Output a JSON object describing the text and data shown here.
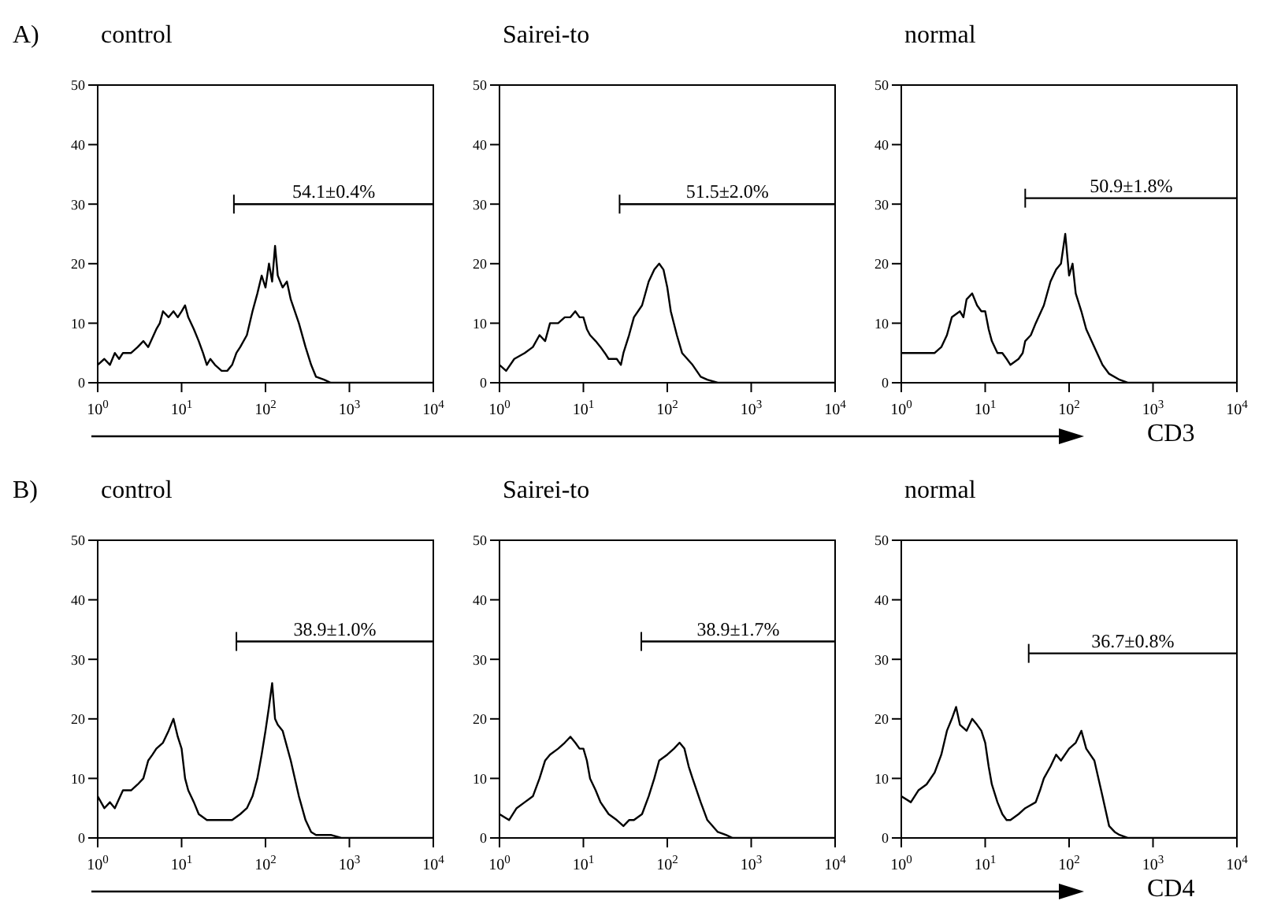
{
  "chart_data": [
    {
      "type": "line",
      "title": "control",
      "annotations": [
        "A)",
        {
          "text": "54.1±0.4%",
          "x": 650,
          "y": 30
        }
      ],
      "log": "x",
      "xlim": [
        1,
        10000
      ],
      "xticks": [
        {
          "value": 1,
          "label": "10$^{0}$"
        },
        {
          "value": 10,
          "label": "10$^{1}$"
        },
        {
          "value": 100,
          "label": "10$^{2}$"
        },
        {
          "value": 1000,
          "label": "10$^{3}$"
        },
        {
          "value": 10000,
          "label": "10$^{4}$"
        }
      ],
      "ylim": [
        0,
        50
      ],
      "yticks": [
        0,
        10,
        20,
        30,
        40,
        50
      ],
      "grid": false,
      "legend": false,
      "series": [
        {
          "color": "#000000",
          "x": [
            1,
            1.2,
            1.4,
            1.6,
            1.8,
            2,
            2.5,
            3,
            3.5,
            4,
            5,
            5.5,
            6,
            7,
            8,
            9,
            10,
            11,
            12,
            14,
            16,
            18,
            20,
            22,
            25,
            30,
            35,
            40,
            45,
            50,
            60,
            70,
            80,
            90,
            100,
            110,
            120,
            130,
            140,
            160,
            180,
            200,
            250,
            300,
            350,
            400,
            500,
            600,
            1000,
            10000
          ],
          "values": [
            3,
            4,
            3,
            5,
            4,
            5,
            5,
            6,
            7,
            6,
            9,
            10,
            12,
            11,
            12,
            11,
            12,
            13,
            11,
            9,
            7,
            5,
            3,
            4,
            3,
            2,
            2,
            3,
            5,
            6,
            8,
            12,
            15,
            18,
            16,
            20,
            17,
            23,
            18,
            16,
            17,
            14,
            10,
            6,
            3,
            1,
            0.5,
            0,
            0,
            0
          ]
        },
        {
          "color": "#000000",
          "x": [
            42,
            10000
          ],
          "values": [
            30,
            30
          ]
        }
      ]
    },
    {
      "type": "line",
      "title": "Sairei-to",
      "annotations": [
        {
          "text": "51.5±2.0%",
          "x": 520,
          "y": 30
        }
      ],
      "log": "x",
      "xlim": [
        1,
        10000
      ],
      "xticks": [
        {
          "value": 1,
          "label": "10$^{0}$"
        },
        {
          "value": 10,
          "label": "10$^{1}$"
        },
        {
          "value": 100,
          "label": "10$^{2}$"
        },
        {
          "value": 1000,
          "label": "10$^{3}$"
        },
        {
          "value": 10000,
          "label": "10$^{4}$"
        }
      ],
      "ylim": [
        0,
        50
      ],
      "yticks": [
        0,
        10,
        20,
        30,
        40,
        50
      ],
      "grid": false,
      "legend": false,
      "series": [
        {
          "color": "#000000",
          "x": [
            1,
            1.2,
            1.5,
            2,
            2.5,
            3,
            3.5,
            4,
            5,
            6,
            7,
            8,
            9,
            10,
            11,
            12,
            14,
            16,
            18,
            20,
            25,
            28,
            30,
            35,
            40,
            50,
            60,
            70,
            80,
            90,
            100,
            110,
            130,
            150,
            200,
            250,
            300,
            400,
            1000,
            10000
          ],
          "values": [
            3,
            2,
            4,
            5,
            6,
            8,
            7,
            10,
            10,
            11,
            11,
            12,
            11,
            11,
            9,
            8,
            7,
            6,
            5,
            4,
            4,
            3,
            5,
            8,
            11,
            13,
            17,
            19,
            20,
            19,
            16,
            12,
            8,
            5,
            3,
            1,
            0.5,
            0,
            0,
            0
          ]
        },
        {
          "color": "#000000",
          "x": [
            27,
            10000
          ],
          "values": [
            30,
            30
          ]
        }
      ]
    },
    {
      "type": "line",
      "title": "normal",
      "xlabel": "CD3",
      "annotations": [
        {
          "text": "50.9±1.8%",
          "x": 550,
          "y": 31
        }
      ],
      "log": "x",
      "xlim": [
        1,
        10000
      ],
      "xticks": [
        {
          "value": 1,
          "label": "10$^{0}$"
        },
        {
          "value": 10,
          "label": "10$^{1}$"
        },
        {
          "value": 100,
          "label": "10$^{2}$"
        },
        {
          "value": 1000,
          "label": "10$^{3}$"
        },
        {
          "value": 10000,
          "label": "10$^{4}$"
        }
      ],
      "ylim": [
        0,
        50
      ],
      "yticks": [
        0,
        10,
        20,
        30,
        40,
        50
      ],
      "grid": false,
      "legend": false,
      "series": [
        {
          "color": "#000000",
          "x": [
            1,
            1.5,
            2,
            2.5,
            3,
            3.5,
            4,
            5,
            5.5,
            6,
            7,
            8,
            9,
            10,
            11,
            12,
            14,
            16,
            18,
            20,
            25,
            28,
            30,
            35,
            40,
            50,
            60,
            70,
            80,
            90,
            100,
            110,
            120,
            140,
            160,
            200,
            250,
            300,
            400,
            500,
            1000,
            10000
          ],
          "values": [
            5,
            5,
            5,
            5,
            6,
            8,
            11,
            12,
            11,
            14,
            15,
            13,
            12,
            12,
            9,
            7,
            5,
            5,
            4,
            3,
            4,
            5,
            7,
            8,
            10,
            13,
            17,
            19,
            20,
            25,
            18,
            20,
            15,
            12,
            9,
            6,
            3,
            1.5,
            0.5,
            0,
            0,
            0
          ]
        },
        {
          "color": "#000000",
          "x": [
            30,
            10000
          ],
          "values": [
            31,
            31
          ]
        }
      ]
    },
    {
      "type": "line",
      "title": "control",
      "annotations": [
        "B)",
        {
          "text": "38.9±1.0%",
          "x": 670,
          "y": 33
        }
      ],
      "log": "x",
      "xlim": [
        1,
        10000
      ],
      "xticks": [
        {
          "value": 1,
          "label": "10$^{0}$"
        },
        {
          "value": 10,
          "label": "10$^{1}$"
        },
        {
          "value": 100,
          "label": "10$^{2}$"
        },
        {
          "value": 1000,
          "label": "10$^{3}$"
        },
        {
          "value": 10000,
          "label": "10$^{4}$"
        }
      ],
      "ylim": [
        0,
        50
      ],
      "yticks": [
        0,
        10,
        20,
        30,
        40,
        50
      ],
      "grid": false,
      "legend": false,
      "series": [
        {
          "color": "#000000",
          "x": [
            1,
            1.2,
            1.4,
            1.6,
            2,
            2.5,
            3,
            3.5,
            4,
            4.5,
            5,
            6,
            7,
            8,
            9,
            10,
            11,
            12,
            14,
            16,
            20,
            25,
            30,
            40,
            50,
            60,
            70,
            80,
            90,
            100,
            110,
            120,
            130,
            140,
            160,
            200,
            250,
            300,
            350,
            400,
            600,
            800,
            10000
          ],
          "values": [
            7,
            5,
            6,
            5,
            8,
            8,
            9,
            10,
            13,
            14,
            15,
            16,
            18,
            20,
            17,
            15,
            10,
            8,
            6,
            4,
            3,
            3,
            3,
            3,
            4,
            5,
            7,
            10,
            14,
            18,
            22,
            26,
            20,
            19,
            18,
            13,
            7,
            3,
            1,
            0.5,
            0.5,
            0,
            0
          ]
        },
        {
          "color": "#000000",
          "x": [
            45,
            10000
          ],
          "values": [
            33,
            33
          ]
        }
      ]
    },
    {
      "type": "line",
      "title": "Sairei-to",
      "annotations": [
        {
          "text": "38.9±1.7%",
          "x": 700,
          "y": 33
        }
      ],
      "log": "x",
      "xlim": [
        1,
        10000
      ],
      "xticks": [
        {
          "value": 1,
          "label": "10$^{0}$"
        },
        {
          "value": 10,
          "label": "10$^{1}$"
        },
        {
          "value": 100,
          "label": "10$^{2}$"
        },
        {
          "value": 1000,
          "label": "10$^{3}$"
        },
        {
          "value": 10000,
          "label": "10$^{4}$"
        }
      ],
      "ylim": [
        0,
        50
      ],
      "yticks": [
        0,
        10,
        20,
        30,
        40,
        50
      ],
      "grid": false,
      "legend": false,
      "series": [
        {
          "color": "#000000",
          "x": [
            1,
            1.3,
            1.6,
            2,
            2.5,
            3,
            3.5,
            4,
            5,
            6,
            7,
            8,
            9,
            10,
            11,
            12,
            14,
            16,
            20,
            25,
            30,
            35,
            40,
            50,
            60,
            70,
            80,
            100,
            120,
            140,
            160,
            180,
            200,
            250,
            300,
            400,
            500,
            600,
            1000,
            10000
          ],
          "values": [
            4,
            3,
            5,
            6,
            7,
            10,
            13,
            14,
            15,
            16,
            17,
            16,
            15,
            15,
            13,
            10,
            8,
            6,
            4,
            3,
            2,
            3,
            3,
            4,
            7,
            10,
            13,
            14,
            15,
            16,
            15,
            12,
            10,
            6,
            3,
            1,
            0.5,
            0,
            0,
            0
          ]
        },
        {
          "color": "#000000",
          "x": [
            49,
            10000
          ],
          "values": [
            33,
            33
          ]
        }
      ]
    },
    {
      "type": "line",
      "title": "normal",
      "xlabel": "CD4",
      "annotations": [
        {
          "text": "36.7±0.8%",
          "x": 575,
          "y": 31
        }
      ],
      "log": "x",
      "xlim": [
        1,
        10000
      ],
      "xticks": [
        {
          "value": 1,
          "label": "10$^{0}$"
        },
        {
          "value": 10,
          "label": "10$^{1}$"
        },
        {
          "value": 100,
          "label": "10$^{2}$"
        },
        {
          "value": 1000,
          "label": "10$^{3}$"
        },
        {
          "value": 10000,
          "label": "10$^{4}$"
        }
      ],
      "ylim": [
        0,
        50
      ],
      "yticks": [
        0,
        10,
        20,
        30,
        40,
        50
      ],
      "grid": false,
      "legend": false,
      "series": [
        {
          "color": "#000000",
          "x": [
            1,
            1.3,
            1.6,
            2,
            2.5,
            3,
            3.5,
            4,
            4.5,
            5,
            6,
            7,
            8,
            9,
            10,
            11,
            12,
            14,
            16,
            18,
            20,
            25,
            30,
            40,
            45,
            50,
            60,
            70,
            80,
            100,
            120,
            140,
            160,
            200,
            250,
            300,
            350,
            400,
            500,
            1000,
            10000
          ],
          "values": [
            7,
            6,
            8,
            9,
            11,
            14,
            18,
            20,
            22,
            19,
            18,
            20,
            19,
            18,
            16,
            12,
            9,
            6,
            4,
            3,
            3,
            4,
            5,
            6,
            8,
            10,
            12,
            14,
            13,
            15,
            16,
            18,
            15,
            13,
            7,
            2,
            1,
            0.5,
            0,
            0,
            0
          ]
        },
        {
          "color": "#000000",
          "x": [
            33,
            10000
          ],
          "values": [
            31,
            31
          ]
        }
      ]
    }
  ]
}
